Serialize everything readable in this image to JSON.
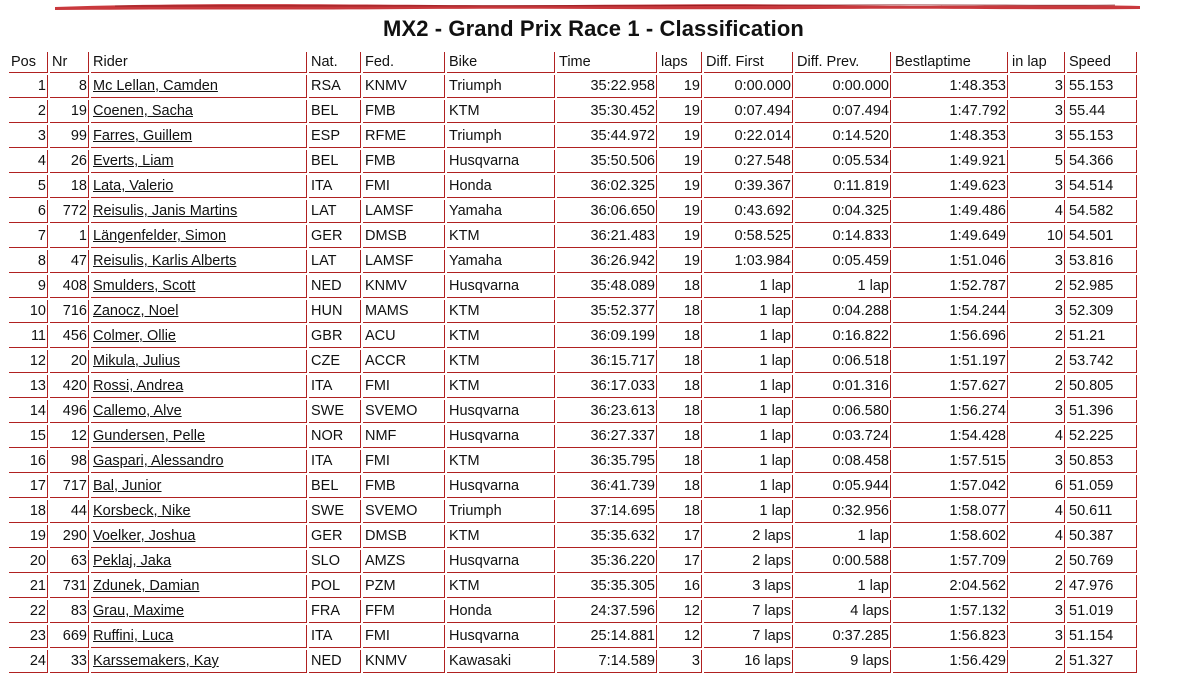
{
  "page": {
    "title": "MX2 - Grand Prix Race 1 - Classification"
  },
  "table": {
    "headers": [
      "Pos",
      "Nr",
      "Rider",
      "Nat.",
      "Fed.",
      "Bike",
      "Time",
      "laps",
      "Diff. First",
      "Diff. Prev.",
      "Bestlaptime",
      "in lap",
      "Speed"
    ],
    "rows": [
      [
        "1",
        "8",
        "Mc Lellan, Camden",
        "RSA",
        "KNMV",
        "Triumph",
        "35:22.958",
        "19",
        "0:00.000",
        "0:00.000",
        "1:48.353",
        "3",
        "55.153"
      ],
      [
        "2",
        "19",
        "Coenen, Sacha",
        "BEL",
        "FMB",
        "KTM",
        "35:30.452",
        "19",
        "0:07.494",
        "0:07.494",
        "1:47.792",
        "3",
        "55.44"
      ],
      [
        "3",
        "99",
        "Farres, Guillem",
        "ESP",
        "RFME",
        "Triumph",
        "35:44.972",
        "19",
        "0:22.014",
        "0:14.520",
        "1:48.353",
        "3",
        "55.153"
      ],
      [
        "4",
        "26",
        "Everts, Liam",
        "BEL",
        "FMB",
        "Husqvarna",
        "35:50.506",
        "19",
        "0:27.548",
        "0:05.534",
        "1:49.921",
        "5",
        "54.366"
      ],
      [
        "5",
        "18",
        "Lata, Valerio",
        "ITA",
        "FMI",
        "Honda",
        "36:02.325",
        "19",
        "0:39.367",
        "0:11.819",
        "1:49.623",
        "3",
        "54.514"
      ],
      [
        "6",
        "772",
        "Reisulis, Janis Martins",
        "LAT",
        "LAMSF",
        "Yamaha",
        "36:06.650",
        "19",
        "0:43.692",
        "0:04.325",
        "1:49.486",
        "4",
        "54.582"
      ],
      [
        "7",
        "1",
        "Längenfelder, Simon",
        "GER",
        "DMSB",
        "KTM",
        "36:21.483",
        "19",
        "0:58.525",
        "0:14.833",
        "1:49.649",
        "10",
        "54.501"
      ],
      [
        "8",
        "47",
        "Reisulis, Karlis Alberts",
        "LAT",
        "LAMSF",
        "Yamaha",
        "36:26.942",
        "19",
        "1:03.984",
        "0:05.459",
        "1:51.046",
        "3",
        "53.816"
      ],
      [
        "9",
        "408",
        "Smulders, Scott",
        "NED",
        "KNMV",
        "Husqvarna",
        "35:48.089",
        "18",
        "1 lap",
        "1 lap",
        "1:52.787",
        "2",
        "52.985"
      ],
      [
        "10",
        "716",
        "Zanocz, Noel",
        "HUN",
        "MAMS",
        "KTM",
        "35:52.377",
        "18",
        "1 lap",
        "0:04.288",
        "1:54.244",
        "3",
        "52.309"
      ],
      [
        "11",
        "456",
        "Colmer, Ollie",
        "GBR",
        "ACU",
        "KTM",
        "36:09.199",
        "18",
        "1 lap",
        "0:16.822",
        "1:56.696",
        "2",
        "51.21"
      ],
      [
        "12",
        "20",
        "Mikula, Julius",
        "CZE",
        "ACCR",
        "KTM",
        "36:15.717",
        "18",
        "1 lap",
        "0:06.518",
        "1:51.197",
        "2",
        "53.742"
      ],
      [
        "13",
        "420",
        "Rossi, Andrea",
        "ITA",
        "FMI",
        "KTM",
        "36:17.033",
        "18",
        "1 lap",
        "0:01.316",
        "1:57.627",
        "2",
        "50.805"
      ],
      [
        "14",
        "496",
        "Callemo, Alve",
        "SWE",
        "SVEMO",
        "Husqvarna",
        "36:23.613",
        "18",
        "1 lap",
        "0:06.580",
        "1:56.274",
        "3",
        "51.396"
      ],
      [
        "15",
        "12",
        "Gundersen, Pelle",
        "NOR",
        "NMF",
        "Husqvarna",
        "36:27.337",
        "18",
        "1 lap",
        "0:03.724",
        "1:54.428",
        "4",
        "52.225"
      ],
      [
        "16",
        "98",
        "Gaspari, Alessandro",
        "ITA",
        "FMI",
        "KTM",
        "36:35.795",
        "18",
        "1 lap",
        "0:08.458",
        "1:57.515",
        "3",
        "50.853"
      ],
      [
        "17",
        "717",
        "Bal, Junior",
        "BEL",
        "FMB",
        "Husqvarna",
        "36:41.739",
        "18",
        "1 lap",
        "0:05.944",
        "1:57.042",
        "6",
        "51.059"
      ],
      [
        "18",
        "44",
        "Korsbeck, Nike",
        "SWE",
        "SVEMO",
        "Triumph",
        "37:14.695",
        "18",
        "1 lap",
        "0:32.956",
        "1:58.077",
        "4",
        "50.611"
      ],
      [
        "19",
        "290",
        "Voelker, Joshua",
        "GER",
        "DMSB",
        "KTM",
        "35:35.632",
        "17",
        "2 laps",
        "1 lap",
        "1:58.602",
        "4",
        "50.387"
      ],
      [
        "20",
        "63",
        "Peklaj, Jaka",
        "SLO",
        "AMZS",
        "Husqvarna",
        "35:36.220",
        "17",
        "2 laps",
        "0:00.588",
        "1:57.709",
        "2",
        "50.769"
      ],
      [
        "21",
        "731",
        "Zdunek, Damian",
        "POL",
        "PZM",
        "KTM",
        "35:35.305",
        "16",
        "3 laps",
        "1 lap",
        "2:04.562",
        "2",
        "47.976"
      ],
      [
        "22",
        "83",
        "Grau, Maxime",
        "FRA",
        "FFM",
        "Honda",
        "24:37.596",
        "12",
        "7 laps",
        "4 laps",
        "1:57.132",
        "3",
        "51.019"
      ],
      [
        "23",
        "669",
        "Ruffini, Luca",
        "ITA",
        "FMI",
        "Husqvarna",
        "25:14.881",
        "12",
        "7 laps",
        "0:37.285",
        "1:56.823",
        "3",
        "51.154"
      ],
      [
        "24",
        "33",
        "Karssemakers, Kay",
        "NED",
        "KNMV",
        "Kawasaki",
        "7:14.589",
        "3",
        "16 laps",
        "9 laps",
        "1:56.429",
        "2",
        "51.327"
      ]
    ]
  },
  "colors": {
    "accent": "#b02121",
    "brush": "#c0161b"
  }
}
